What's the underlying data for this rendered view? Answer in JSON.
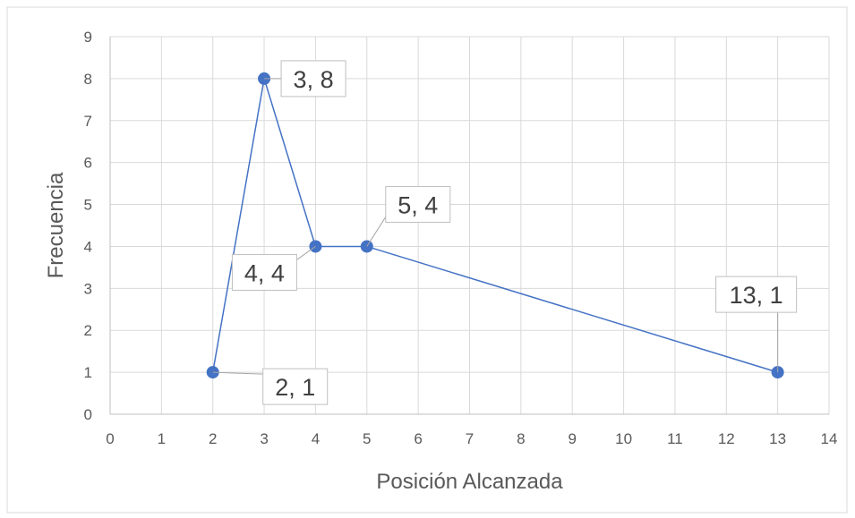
{
  "chart_data": {
    "type": "scatter",
    "title": "",
    "xlabel": "Posición Alcanzada",
    "ylabel": "Frecuencia",
    "xlim": [
      0,
      14
    ],
    "ylim": [
      0,
      9
    ],
    "x_ticks": [
      0,
      1,
      2,
      3,
      4,
      5,
      6,
      7,
      8,
      9,
      10,
      11,
      12,
      13,
      14
    ],
    "y_ticks": [
      0,
      1,
      2,
      3,
      4,
      5,
      6,
      7,
      8,
      9
    ],
    "grid": true,
    "legend": "none",
    "lines_connect_points": true,
    "series": [
      {
        "color": "#4472c4",
        "x": [
          2,
          3,
          4,
          5,
          13
        ],
        "y": [
          1,
          8,
          4,
          4,
          1
        ],
        "data_labels": [
          "2, 1",
          "3, 8",
          "4, 4",
          "5, 4",
          "13, 1"
        ]
      }
    ]
  }
}
